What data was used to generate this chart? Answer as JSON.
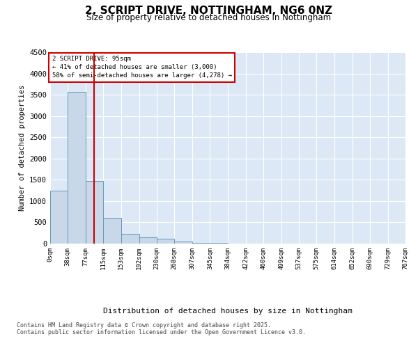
{
  "title": "2, SCRIPT DRIVE, NOTTINGHAM, NG6 0NZ",
  "subtitle": "Size of property relative to detached houses in Nottingham",
  "xlabel": "Distribution of detached houses by size in Nottingham",
  "ylabel": "Number of detached properties",
  "bar_color": "#c8d8e8",
  "bar_edge_color": "#6699bb",
  "background_color": "#dce8f5",
  "fig_background": "#ffffff",
  "grid_color": "#ffffff",
  "vline_x": 95,
  "vline_color": "#cc0000",
  "annotation_title": "2 SCRIPT DRIVE: 95sqm",
  "annotation_line1": "← 41% of detached houses are smaller (3,000)",
  "annotation_line2": "58% of semi-detached houses are larger (4,278) →",
  "bin_edges": [
    0,
    38,
    77,
    115,
    153,
    192,
    230,
    268,
    307,
    345,
    384,
    422,
    460,
    499,
    537,
    575,
    614,
    652,
    690,
    729,
    767
  ],
  "bar_heights": [
    1250,
    3560,
    1480,
    600,
    230,
    155,
    120,
    50,
    20,
    10,
    2,
    2,
    0,
    0,
    0,
    0,
    0,
    0,
    0,
    0
  ],
  "ylim": [
    0,
    4500
  ],
  "yticks": [
    0,
    500,
    1000,
    1500,
    2000,
    2500,
    3000,
    3500,
    4000,
    4500
  ],
  "footer_line1": "Contains HM Land Registry data © Crown copyright and database right 2025.",
  "footer_line2": "Contains public sector information licensed under the Open Government Licence v3.0."
}
